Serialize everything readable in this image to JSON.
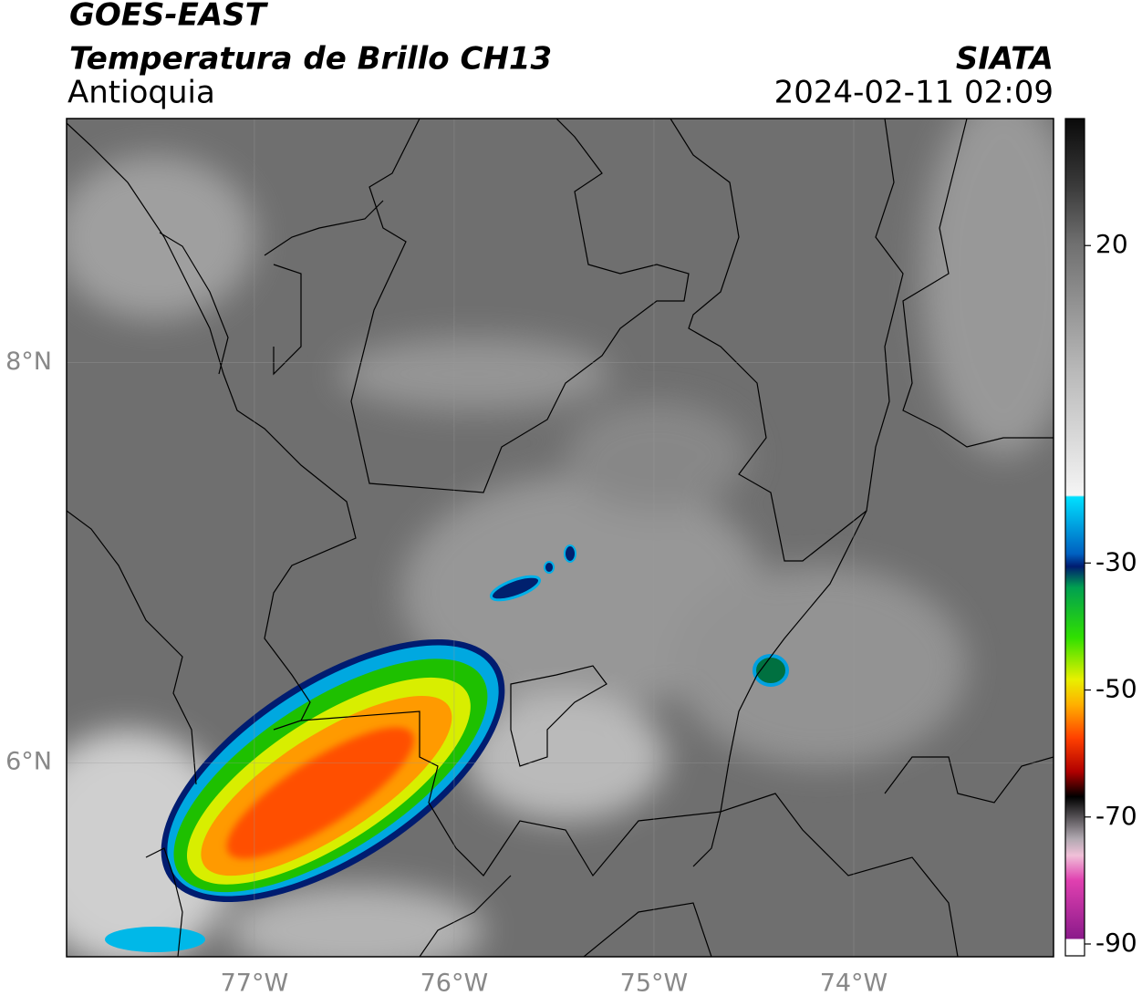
{
  "header": {
    "title": "GOES-EAST",
    "subtitle": "Temperatura de Brillo CH13",
    "region": "Antioquia",
    "source": "SIATA",
    "datetime": "2024-02-11 02:09"
  },
  "map": {
    "xlim": [
      -77.94,
      -73.0
    ],
    "ylim": [
      5.03,
      9.22
    ],
    "xticks": [
      {
        "value": -77,
        "label": "77°W"
      },
      {
        "value": -76,
        "label": "76°W"
      },
      {
        "value": -75,
        "label": "75°W"
      },
      {
        "value": -74,
        "label": "74°W"
      }
    ],
    "yticks": [
      {
        "value": 8,
        "label": "8°N"
      },
      {
        "value": 6,
        "label": "6°N"
      }
    ]
  },
  "colorbar": {
    "clim": [
      -90,
      40
    ],
    "ticks": [
      20,
      -30,
      -50,
      -70,
      -90
    ]
  }
}
